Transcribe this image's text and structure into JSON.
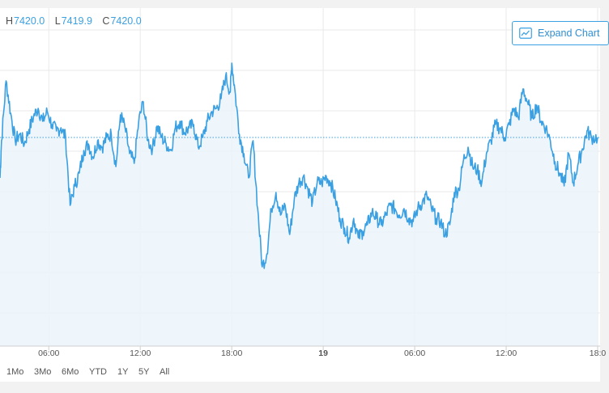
{
  "ohlc": {
    "high_key": "H",
    "high": "7420.0",
    "low_key": "L",
    "low": "7419.9",
    "close_key": "C",
    "close": "7420.0"
  },
  "expand_label": "Expand Chart",
  "colors": {
    "line": "#3aa0e2",
    "fill": "#ebf4fb",
    "grid": "#e9e9e9",
    "accent": "#2f8fd3"
  },
  "range_buttons": [
    "1Mo",
    "3Mo",
    "6Mo",
    "YTD",
    "1Y",
    "5Y",
    "All"
  ],
  "chart_data": {
    "type": "area",
    "title": "",
    "xlabel": "",
    "ylabel": "",
    "x_tick_labels": [
      "06:00",
      "12:00",
      "18:00",
      "19",
      "06:00",
      "12:00",
      "18:0"
    ],
    "x_tick_hours": [
      6,
      12,
      18,
      24,
      30,
      36,
      42
    ],
    "x_range_hours": [
      2.8,
      42.0
    ],
    "y_range": [
      7300,
      7470
    ],
    "reference_line": 7420.0,
    "grid": true,
    "legend": "none",
    "series": [
      {
        "x_hours": [
          2.8,
          2.9,
          3.2,
          3.5,
          3.8,
          4.1,
          4.4,
          4.7,
          5.0,
          5.3,
          5.6,
          5.9,
          6.2,
          6.5,
          6.8,
          7.1,
          7.4,
          7.7,
          8.0,
          8.3,
          8.6,
          8.9,
          9.2,
          9.5,
          9.8,
          10.1,
          10.4,
          10.7,
          11.0,
          11.3,
          11.6,
          11.9,
          12.2,
          12.5,
          12.8,
          13.1,
          13.4,
          13.7,
          14.0,
          14.3,
          14.6,
          14.9,
          15.2,
          15.5,
          15.8,
          16.1,
          16.4,
          16.7,
          17.0,
          17.3,
          17.6,
          17.9,
          18.0,
          18.2,
          18.5,
          18.8,
          19.1,
          19.4,
          19.7,
          20.0,
          20.3,
          20.6,
          20.9,
          21.2,
          21.5,
          21.8,
          22.1,
          22.4,
          22.7,
          23.0,
          23.3,
          23.6,
          23.9,
          24.2,
          24.5,
          24.8,
          25.1,
          25.4,
          25.7,
          26.0,
          26.3,
          26.6,
          26.9,
          27.2,
          27.5,
          27.8,
          28.1,
          28.4,
          28.7,
          29.0,
          29.3,
          29.6,
          29.9,
          30.2,
          30.5,
          30.8,
          31.1,
          31.4,
          31.7,
          32.0,
          32.3,
          32.6,
          32.9,
          33.2,
          33.5,
          33.8,
          34.1,
          34.4,
          34.7,
          35.0,
          35.3,
          35.6,
          35.9,
          36.2,
          36.5,
          36.8,
          37.1,
          37.4,
          37.7,
          38.0,
          38.3,
          38.6,
          38.9,
          39.2,
          39.5,
          39.8,
          40.1,
          40.4,
          40.7,
          41.0,
          41.3,
          41.6,
          42.0
        ],
        "values": [
          7395,
          7418,
          7455,
          7435,
          7418,
          7422,
          7416,
          7425,
          7433,
          7438,
          7430,
          7436,
          7428,
          7424,
          7426,
          7420,
          7378,
          7390,
          7398,
          7412,
          7416,
          7408,
          7418,
          7414,
          7420,
          7422,
          7402,
          7434,
          7426,
          7410,
          7404,
          7430,
          7442,
          7418,
          7413,
          7427,
          7420,
          7416,
          7412,
          7426,
          7430,
          7423,
          7426,
          7428,
          7414,
          7420,
          7430,
          7436,
          7438,
          7444,
          7458,
          7448,
          7466,
          7450,
          7422,
          7410,
          7395,
          7418,
          7376,
          7340,
          7348,
          7376,
          7386,
          7372,
          7378,
          7360,
          7382,
          7392,
          7396,
          7388,
          7380,
          7392,
          7392,
          7396,
          7392,
          7382,
          7370,
          7364,
          7358,
          7370,
          7358,
          7362,
          7366,
          7374,
          7370,
          7366,
          7372,
          7378,
          7376,
          7372,
          7376,
          7370,
          7368,
          7376,
          7380,
          7384,
          7376,
          7370,
          7368,
          7360,
          7366,
          7386,
          7388,
          7406,
          7414,
          7402,
          7400,
          7392,
          7410,
          7418,
          7428,
          7426,
          7420,
          7428,
          7438,
          7432,
          7450,
          7442,
          7432,
          7440,
          7430,
          7426,
          7418,
          7405,
          7398,
          7390,
          7410,
          7392,
          7403,
          7413,
          7424,
          7420,
          7420.0
        ]
      }
    ]
  }
}
